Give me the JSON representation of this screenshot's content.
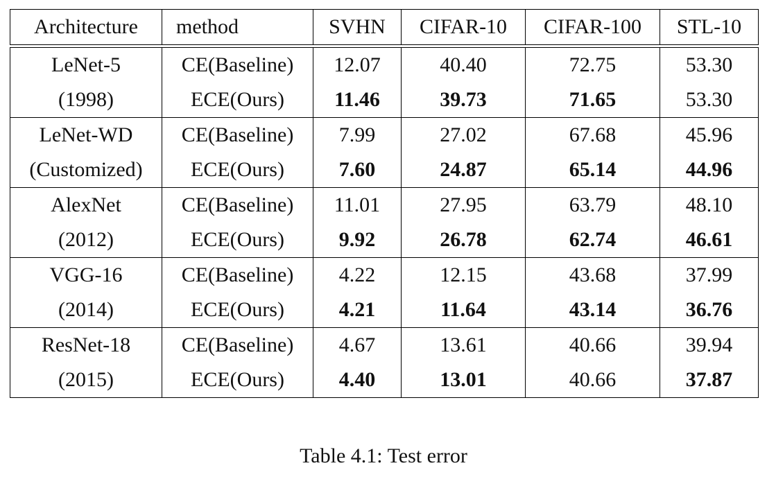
{
  "table": {
    "headers": [
      "Architecture",
      "method",
      "SVHN",
      "CIFAR-10",
      "CIFAR-100",
      "STL-10"
    ],
    "groups": [
      {
        "arch_line1": "LeNet-5",
        "arch_line2": "(1998)",
        "rows": [
          {
            "method": "CE(Baseline)",
            "values": [
              "12.07",
              "40.40",
              "72.75",
              "53.30"
            ]
          },
          {
            "method": "ECE(Ours)",
            "values": [
              "11.46",
              "39.73",
              "71.65",
              "53.30"
            ]
          }
        ]
      },
      {
        "arch_line1": "LeNet-WD",
        "arch_line2": "(Customized)",
        "rows": [
          {
            "method": "CE(Baseline)",
            "values": [
              "7.99",
              "27.02",
              "67.68",
              "45.96"
            ]
          },
          {
            "method": "ECE(Ours)",
            "values": [
              "7.60",
              "24.87",
              "65.14",
              "44.96"
            ]
          }
        ]
      },
      {
        "arch_line1": "AlexNet",
        "arch_line2": "(2012)",
        "rows": [
          {
            "method": "CE(Baseline)",
            "values": [
              "11.01",
              "27.95",
              "63.79",
              "48.10"
            ]
          },
          {
            "method": "ECE(Ours)",
            "values": [
              "9.92",
              "26.78",
              "62.74",
              "46.61"
            ]
          }
        ]
      },
      {
        "arch_line1": "VGG-16",
        "arch_line2": "(2014)",
        "rows": [
          {
            "method": "CE(Baseline)",
            "values": [
              "4.22",
              "12.15",
              "43.68",
              "37.99"
            ]
          },
          {
            "method": "ECE(Ours)",
            "values": [
              "4.21",
              "11.64",
              "43.14",
              "36.76"
            ]
          }
        ]
      },
      {
        "arch_line1": "ResNet-18",
        "arch_line2": "(2015)",
        "rows": [
          {
            "method": "CE(Baseline)",
            "values": [
              "4.67",
              "13.61",
              "40.66",
              "39.94"
            ]
          },
          {
            "method": "ECE(Ours)",
            "values": [
              "4.40",
              "13.01",
              "40.66",
              "37.87"
            ]
          }
        ]
      }
    ]
  },
  "caption": "Table 4.1: Test error"
}
